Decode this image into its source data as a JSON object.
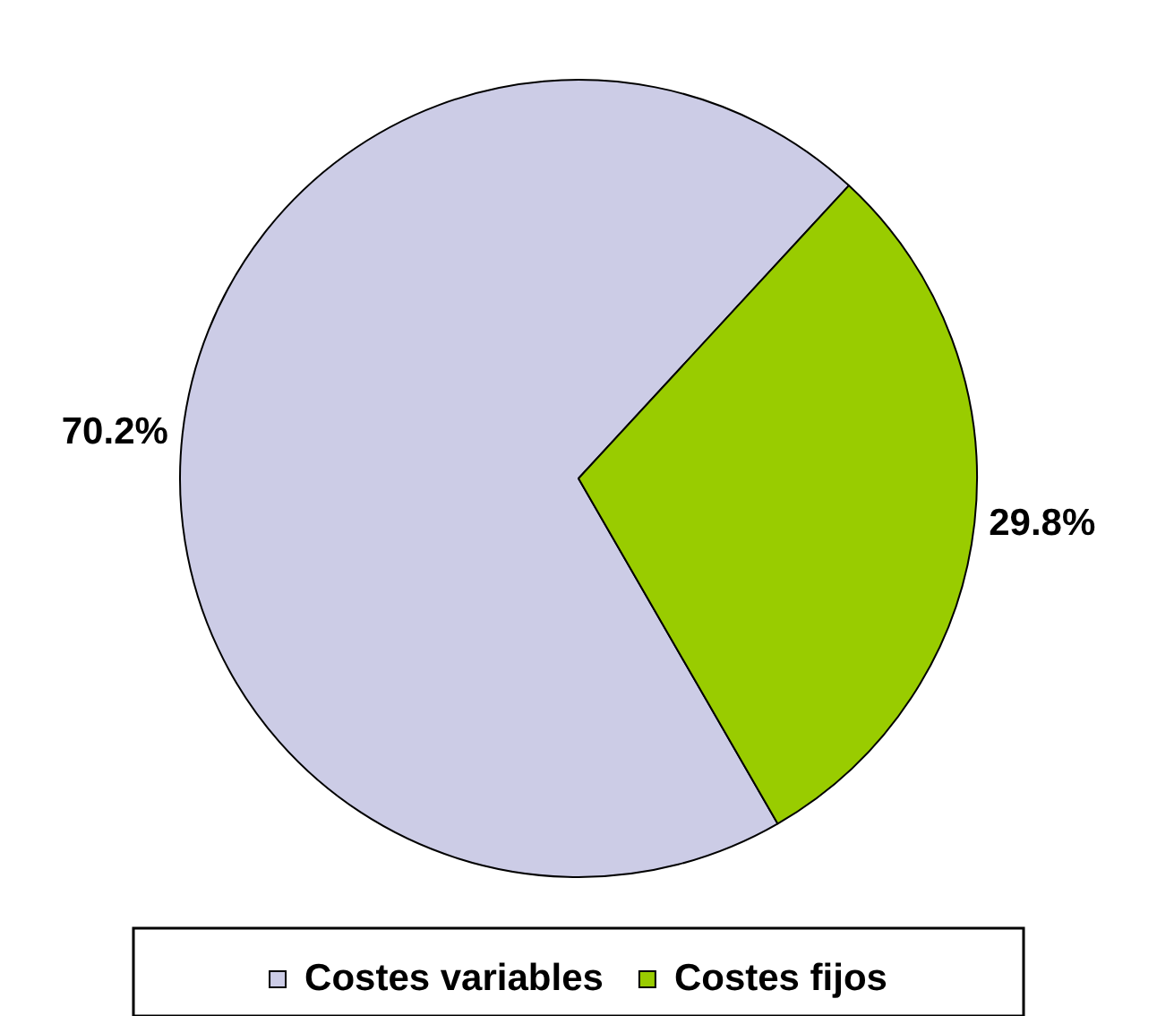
{
  "chart_data": {
    "type": "pie",
    "categories": [
      "Costes variables",
      "Costes fijos"
    ],
    "values": [
      70.2,
      29.8
    ],
    "colors": [
      "#cccce6",
      "#99cc00"
    ],
    "value_labels": [
      "70.2%",
      "29.8%"
    ],
    "legend": "bottom"
  }
}
